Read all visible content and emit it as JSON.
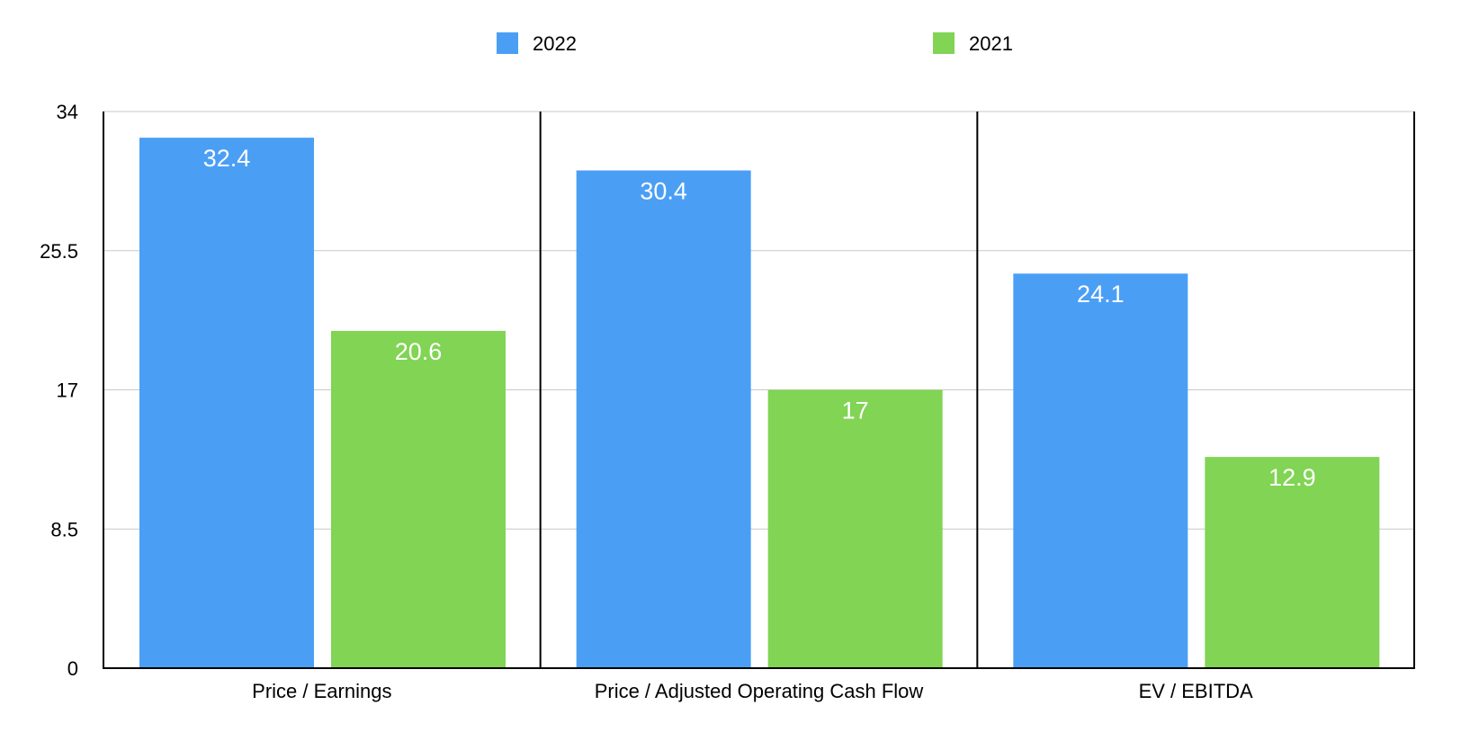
{
  "chart_data": {
    "type": "bar",
    "title": "",
    "xlabel": "",
    "ylabel": "",
    "categories": [
      "Price / Earnings",
      "Price / Adjusted Operating Cash Flow",
      "EV / EBITDA"
    ],
    "series": [
      {
        "name": "2022",
        "color": "#4A9FF5",
        "values": [
          32.4,
          30.4,
          24.1
        ],
        "value_labels": [
          "32.4",
          "30.4",
          "24.1"
        ]
      },
      {
        "name": "2021",
        "color": "#81D454",
        "values": [
          20.6,
          17,
          12.9
        ],
        "value_labels": [
          "20.6",
          "17",
          "12.9"
        ]
      }
    ],
    "ylim": [
      0,
      34
    ],
    "yticks": [
      0,
      8.5,
      17,
      25.5,
      34
    ],
    "ytick_labels": [
      "0",
      "8.5",
      "17",
      "25.5",
      "34"
    ],
    "grid": true,
    "grid_color": "#c8c8c8",
    "axis_color": "#000000",
    "legend_position": "top-center"
  }
}
